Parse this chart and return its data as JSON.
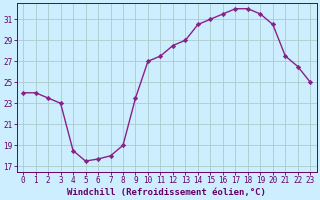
{
  "x": [
    0,
    1,
    2,
    3,
    4,
    5,
    6,
    7,
    8,
    9,
    10,
    11,
    12,
    13,
    14,
    15,
    16,
    17,
    18,
    19,
    20,
    21,
    22,
    23
  ],
  "y": [
    24.0,
    24.0,
    23.5,
    23.0,
    18.5,
    17.5,
    17.7,
    18.0,
    19.0,
    23.5,
    27.0,
    27.5,
    28.5,
    29.0,
    30.5,
    31.0,
    31.5,
    32.0,
    32.0,
    31.5,
    30.5,
    27.5,
    26.5,
    25.0
  ],
  "line_color": "#882288",
  "marker": "D",
  "marker_size": 2.2,
  "linewidth": 1.0,
  "xlabel": "Windchill (Refroidissement éolien,°C)",
  "xlim": [
    -0.5,
    23.5
  ],
  "ylim": [
    16.5,
    32.5
  ],
  "yticks": [
    17,
    19,
    21,
    23,
    25,
    27,
    29,
    31
  ],
  "xticks": [
    0,
    1,
    2,
    3,
    4,
    5,
    6,
    7,
    8,
    9,
    10,
    11,
    12,
    13,
    14,
    15,
    16,
    17,
    18,
    19,
    20,
    21,
    22,
    23
  ],
  "bg_color": "#cceeff",
  "grid_color": "#aacccc",
  "xlabel_fontsize": 6.5,
  "tick_fontsize": 5.5,
  "axis_color": "#660066",
  "spine_color": "#660066",
  "figure_width": 3.2,
  "figure_height": 2.0,
  "dpi": 100
}
